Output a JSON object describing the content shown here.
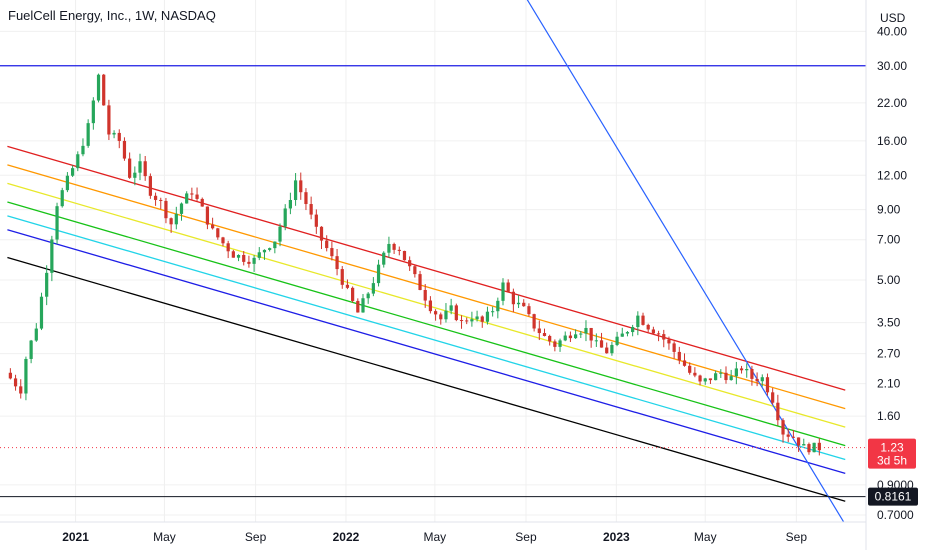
{
  "chart_data": {
    "type": "candlestick",
    "title": "FuelCell Energy, Inc., 1W, NASDAQ",
    "currency": "USD",
    "y_scale": "log",
    "ylim": [
      0.66,
      52
    ],
    "y_ticks": [
      "40.00",
      "30.00",
      "22.00",
      "16.00",
      "12.00",
      "9.00",
      "7.00",
      "5.00",
      "3.50",
      "2.70",
      "2.10",
      "1.60",
      "0.9000",
      "0.7000"
    ],
    "x_ticks": [
      "2021",
      "May",
      "Sep",
      "2022",
      "May",
      "Sep",
      "2023",
      "May",
      "Sep"
    ],
    "last_price": {
      "value": "1.23",
      "countdown": "3d 5h",
      "color": "#f23645"
    },
    "level_marker": {
      "value": "0.8161",
      "color": "#131722"
    },
    "horizontal_line": {
      "value": 30.0,
      "color": "#1e1ee6"
    },
    "regression_channel": {
      "start_date": "2020-10-01",
      "end_date": "2023-11-06",
      "mid_start": 9.6,
      "mid_end": 1.25,
      "offsets": [
        {
          "mult": 0.465,
          "color": "#e02020"
        },
        {
          "mult": 0.31,
          "color": "#ff9800"
        },
        {
          "mult": 0.155,
          "color": "#e8e82a"
        },
        {
          "mult": 0.0,
          "color": "#17c217"
        },
        {
          "mult": -0.116,
          "color": "#22d4e8"
        },
        {
          "mult": -0.232,
          "color": "#1e1ee6"
        },
        {
          "mult": -0.465,
          "color": "#000000"
        }
      ]
    },
    "trend_line": {
      "points": [
        [
          "2022-08-20",
          60
        ],
        [
          "2023-11-10",
          0.62
        ]
      ],
      "color": "#2962ff"
    },
    "colors": {
      "up": "#26a65b",
      "down": "#d0342c",
      "grid": "#f0f0f0"
    },
    "series_path": [
      [
        "2020-10-05",
        2.3
      ],
      [
        "2020-10-26",
        2.0
      ],
      [
        "2020-11-02",
        2.6
      ],
      [
        "2020-11-16",
        3.4
      ],
      [
        "2020-11-30",
        5.5
      ],
      [
        "2020-12-14",
        9.5
      ],
      [
        "2020-12-28",
        11.5
      ],
      [
        "2021-01-11",
        14.0
      ],
      [
        "2021-01-25",
        18.0
      ],
      [
        "2021-02-08",
        27.5
      ],
      [
        "2021-02-22",
        17.0
      ],
      [
        "2021-03-08",
        16.0
      ],
      [
        "2021-03-22",
        12.0
      ],
      [
        "2021-04-05",
        13.0
      ],
      [
        "2021-04-19",
        10.5
      ],
      [
        "2021-05-03",
        9.5
      ],
      [
        "2021-05-17",
        8.0
      ],
      [
        "2021-05-31",
        9.5
      ],
      [
        "2021-06-14",
        10.5
      ],
      [
        "2021-06-28",
        9.0
      ],
      [
        "2021-07-12",
        7.5
      ],
      [
        "2021-07-26",
        6.8
      ],
      [
        "2021-08-09",
        6.2
      ],
      [
        "2021-08-23",
        6.0
      ],
      [
        "2021-09-06",
        5.9
      ],
      [
        "2021-09-20",
        6.5
      ],
      [
        "2021-10-04",
        7.0
      ],
      [
        "2021-10-18",
        8.8
      ],
      [
        "2021-11-01",
        11.5
      ],
      [
        "2021-11-15",
        9.5
      ],
      [
        "2021-11-29",
        7.5
      ],
      [
        "2021-12-13",
        6.5
      ],
      [
        "2021-12-27",
        5.5
      ],
      [
        "2022-01-10",
        4.5
      ],
      [
        "2022-01-24",
        3.8
      ],
      [
        "2022-02-07",
        4.5
      ],
      [
        "2022-02-21",
        5.5
      ],
      [
        "2022-03-07",
        6.8
      ],
      [
        "2022-03-21",
        6.5
      ],
      [
        "2022-04-04",
        5.5
      ],
      [
        "2022-04-18",
        4.7
      ],
      [
        "2022-05-02",
        4.0
      ],
      [
        "2022-05-16",
        3.6
      ],
      [
        "2022-05-30",
        3.9
      ],
      [
        "2022-06-13",
        3.5
      ],
      [
        "2022-06-27",
        3.7
      ],
      [
        "2022-07-11",
        3.5
      ],
      [
        "2022-07-25",
        3.9
      ],
      [
        "2022-08-08",
        4.8
      ],
      [
        "2022-08-22",
        4.2
      ],
      [
        "2022-09-05",
        3.9
      ],
      [
        "2022-09-19",
        3.4
      ],
      [
        "2022-10-03",
        3.1
      ],
      [
        "2022-10-17",
        2.9
      ],
      [
        "2022-10-31",
        3.1
      ],
      [
        "2022-11-14",
        3.3
      ],
      [
        "2022-11-28",
        3.3
      ],
      [
        "2022-12-12",
        2.9
      ],
      [
        "2022-12-26",
        2.75
      ],
      [
        "2023-01-09",
        3.0
      ],
      [
        "2023-01-23",
        3.3
      ],
      [
        "2023-02-06",
        3.7
      ],
      [
        "2023-02-20",
        3.4
      ],
      [
        "2023-03-06",
        3.2
      ],
      [
        "2023-03-20",
        2.9
      ],
      [
        "2023-04-03",
        2.6
      ],
      [
        "2023-04-17",
        2.3
      ],
      [
        "2023-05-01",
        2.1
      ],
      [
        "2023-05-15",
        2.2
      ],
      [
        "2023-05-29",
        2.3
      ],
      [
        "2023-06-12",
        2.2
      ],
      [
        "2023-06-26",
        2.4
      ],
      [
        "2023-07-10",
        2.2
      ],
      [
        "2023-07-24",
        2.2
      ],
      [
        "2023-08-07",
        1.85
      ],
      [
        "2023-08-21",
        1.4
      ],
      [
        "2023-09-04",
        1.35
      ],
      [
        "2023-09-18",
        1.23
      ],
      [
        "2023-10-02",
        1.23
      ]
    ]
  }
}
